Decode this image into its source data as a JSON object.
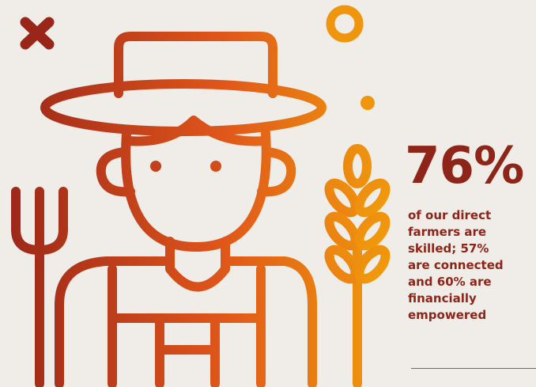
{
  "stat": {
    "value": "76%",
    "description_lines": [
      "of our direct",
      "farmers are",
      "skilled; 57%",
      "are connected",
      "and 60% are",
      "financially",
      "empowered"
    ]
  }
}
